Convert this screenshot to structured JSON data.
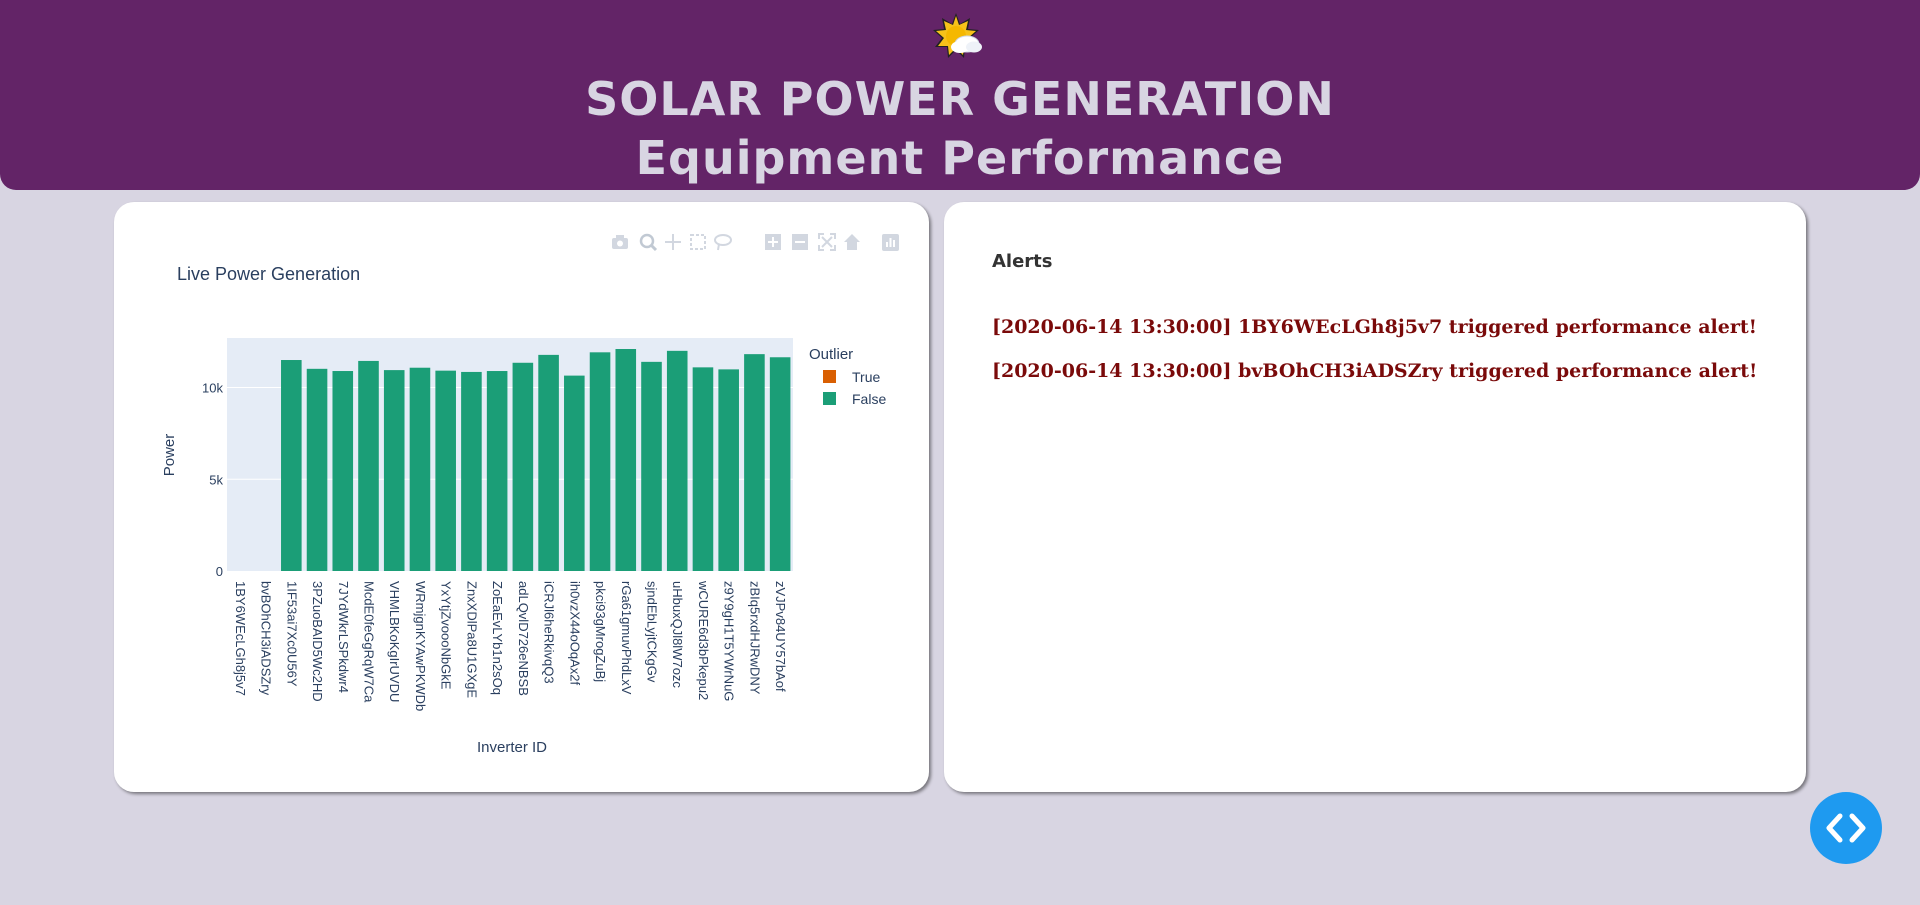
{
  "header": {
    "icon": "sun-behind-cloud-icon",
    "title_line1": "SOLAR POWER GENERATION",
    "title_line2": "Equipment Performance"
  },
  "chart_card": {
    "modebar_icons": [
      "camera-icon",
      "zoom-icon",
      "pan-icon",
      "box-select-icon",
      "lasso-icon",
      "zoom-in-icon",
      "zoom-out-icon",
      "autoscale-icon",
      "reset-axes-icon",
      "plotly-logo-icon"
    ]
  },
  "chart_data": {
    "type": "bar",
    "title": "Live Power Generation",
    "xlabel": "Inverter ID",
    "ylabel": "Power",
    "ylim": [
      0,
      12700
    ],
    "yticks": [
      0,
      5000,
      10000
    ],
    "ytick_labels": [
      "0",
      "5k",
      "10k"
    ],
    "legend_title": "Outlier",
    "legend_position": "right",
    "grid": true,
    "categories": [
      "1BY6WEcLGh8j5v7",
      "bvBOhCH3iADSZry",
      "1IF53ai7Xc0U56Y",
      "3PZuoBAID5Wc2HD",
      "7JYdWkrLSPkdwr4",
      "McdE0feGgRqW7Ca",
      "VHMLBKoKgIrUVDU",
      "WRmjgnKYAwPKWDb",
      "YxYtjZvoooNbGkE",
      "ZnxXDlPa8U1GXgE",
      "ZoEaEvLYb1n2sOq",
      "adLQvlD726eNBSB",
      "iCRJl6heRkivqQ3",
      "ih0vzX44oOqAx2f",
      "pkci93gMrogZuBj",
      "rGa61gmuvPhdLxV",
      "sjndEbLyjtCKgGv",
      "uHbuxQJl8lW7ozc",
      "wCURE6d3bPkepu2",
      "z9Y9gH1T5YWrNuG",
      "zBIq5rxdHJRwDNY",
      "zVJPv84UY57bAof"
    ],
    "series": [
      {
        "name": "True",
        "color": "#d95f02",
        "values": [
          0,
          0,
          0,
          0,
          0,
          0,
          0,
          0,
          0,
          0,
          0,
          0,
          0,
          0,
          0,
          0,
          0,
          0,
          0,
          0,
          0,
          0
        ]
      },
      {
        "name": "False",
        "color": "#1b9e77",
        "values": [
          0,
          0,
          11500,
          11020,
          10900,
          11450,
          10950,
          11080,
          10920,
          10850,
          10900,
          11350,
          11780,
          10650,
          11920,
          12100,
          11400,
          12000,
          11100,
          10990,
          11820,
          11650
        ]
      }
    ]
  },
  "alerts": {
    "title": "Alerts",
    "items": [
      "[2020-06-14 13:30:00] 1BY6WEcLGh8j5v7 triggered performance alert!",
      "[2020-06-14 13:30:00] bvBOhCH3iADSZry triggered performance alert!"
    ],
    "color": "#7a0a0a"
  },
  "code_button": {
    "icon": "code-brackets-icon",
    "color": "#1e9af0"
  }
}
